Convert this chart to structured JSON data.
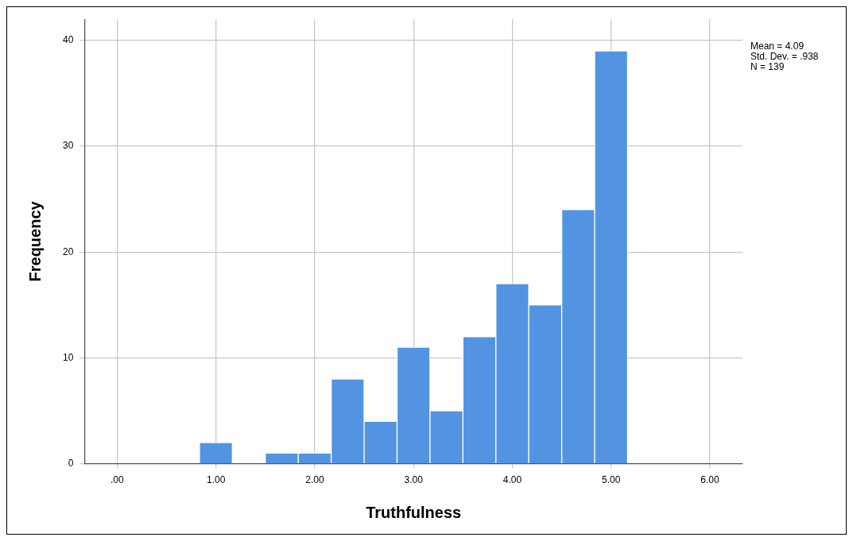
{
  "chart_data": {
    "type": "histogram",
    "xlabel": "Truthfulness",
    "ylabel": "Frequency",
    "bins": [
      0.833,
      1.167,
      1.5,
      1.833,
      2.167,
      2.5,
      2.833,
      3.167,
      3.5,
      3.833,
      4.167,
      4.5,
      4.833,
      5.167
    ],
    "values": [
      2,
      0,
      1,
      1,
      8,
      4,
      11,
      5,
      12,
      17,
      15,
      24,
      39
    ],
    "color": "#5294e2",
    "xlim": [
      -0.33,
      6.33
    ],
    "xticks": [
      {
        "value": 0,
        "label": ".00"
      },
      {
        "value": 1,
        "label": "1.00"
      },
      {
        "value": 2,
        "label": "2.00"
      },
      {
        "value": 3,
        "label": "3.00"
      },
      {
        "value": 4,
        "label": "4.00"
      },
      {
        "value": 5,
        "label": "5.00"
      },
      {
        "value": 6,
        "label": "6.00"
      }
    ],
    "ylim": [
      0,
      42
    ],
    "yticks": [
      0,
      10,
      20,
      30,
      40
    ],
    "grid": true,
    "annotations": [
      "Mean = 4.09",
      "Std. Dev. = .938",
      "N = 139"
    ]
  }
}
